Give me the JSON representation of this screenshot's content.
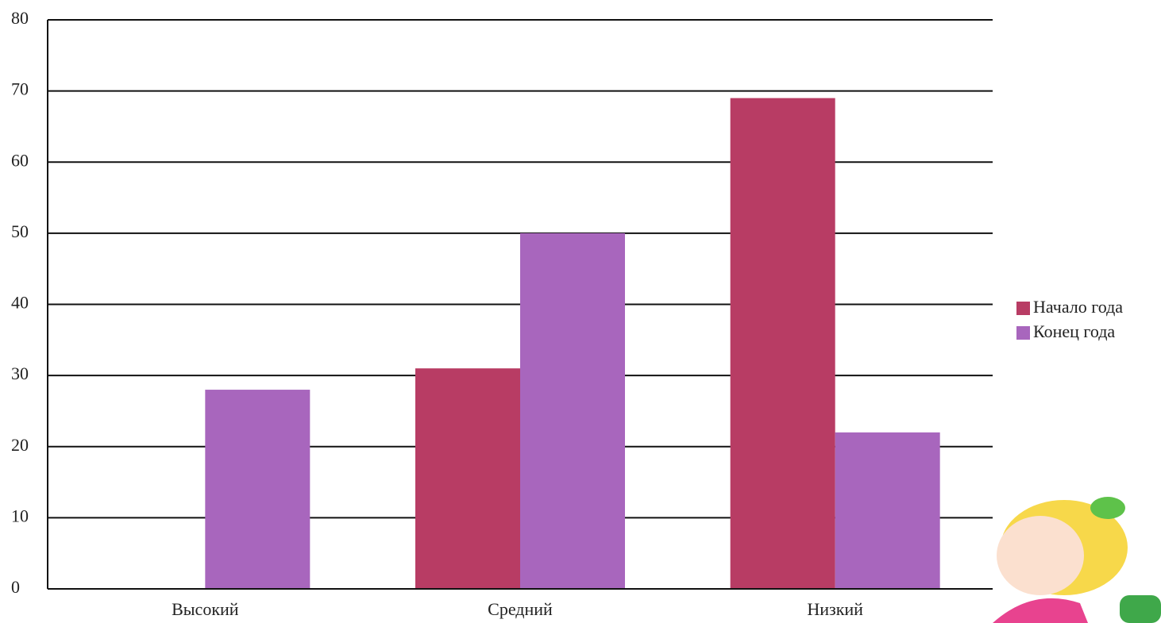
{
  "chart_data": {
    "type": "bar",
    "categories": [
      "Высокий",
      "Средний",
      "Низкий"
    ],
    "series": [
      {
        "name": "Начало года",
        "color": "#b83c64",
        "values": [
          0,
          31,
          69
        ]
      },
      {
        "name": "Конец года",
        "color": "#a866bd",
        "values": [
          28,
          50,
          22
        ]
      }
    ],
    "ylim": [
      0,
      80
    ],
    "yticks": [
      0,
      10,
      20,
      30,
      40,
      50,
      60,
      70,
      80
    ],
    "grid": true,
    "legend": "right"
  }
}
